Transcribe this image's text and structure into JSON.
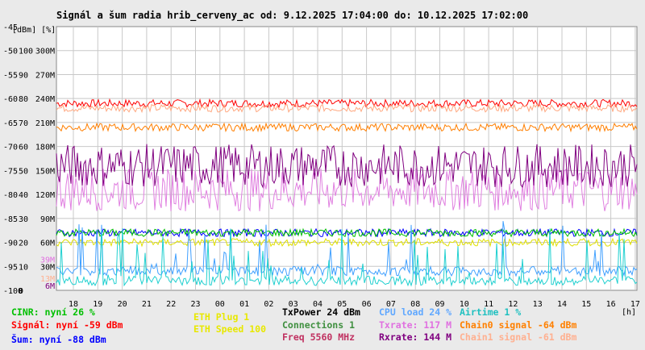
{
  "chart_data": {
    "type": "line",
    "title": "Signál a šum radia hrib_cerveny_ac od: 9.12.2025 17:04:00 do: 10.12.2025 17:02:00",
    "y_unit_label": "[dBm] [%]",
    "x_unit_label": "[h]",
    "xlabel": "",
    "ylabel": "",
    "x_ticks": [
      "18",
      "19",
      "20",
      "21",
      "22",
      "23",
      "00",
      "01",
      "02",
      "03",
      "04",
      "05",
      "06",
      "07",
      "08",
      "09",
      "10",
      "11",
      "12",
      "13",
      "14",
      "15",
      "16",
      "17"
    ],
    "y_ticks": [
      {
        "dbm": "-45",
        "pct": "",
        "rate": ""
      },
      {
        "dbm": "-50",
        "pct": "100",
        "rate": "300M"
      },
      {
        "dbm": "-55",
        "pct": "90",
        "rate": "270M"
      },
      {
        "dbm": "-60",
        "pct": "80",
        "rate": "240M"
      },
      {
        "dbm": "-65",
        "pct": "70",
        "rate": "210M"
      },
      {
        "dbm": "-70",
        "pct": "60",
        "rate": "180M"
      },
      {
        "dbm": "-75",
        "pct": "50",
        "rate": "150M"
      },
      {
        "dbm": "-80",
        "pct": "40",
        "rate": "120M"
      },
      {
        "dbm": "-85",
        "pct": "30",
        "rate": "90M"
      },
      {
        "dbm": "-90",
        "pct": "20",
        "rate": "60M"
      },
      {
        "dbm": "-95",
        "pct": "10",
        "rate": "30M"
      },
      {
        "dbm": "-100",
        "pct": "0",
        "rate": ""
      }
    ],
    "ylim": [
      -100,
      -45
    ],
    "y_left_units": "dBm",
    "inline_rate_labels": [
      "39M",
      "13M",
      "6M"
    ],
    "grid": true,
    "series": [
      {
        "name": "Signál",
        "color": "#ff0000",
        "approx_level": -61
      },
      {
        "name": "Chain1 signal",
        "color": "#ffa880",
        "approx_level": -62
      },
      {
        "name": "Chain0 signal",
        "color": "#ff7f00",
        "approx_level": -66
      },
      {
        "name": "Txrate",
        "color": "#e080e0",
        "approx_level": -79
      },
      {
        "name": "Rxrate",
        "color": "#800080",
        "approx_level": -74
      },
      {
        "name": "Šum",
        "color": "#0000ff",
        "approx_level": -88
      },
      {
        "name": "CINR",
        "color": "#00c000",
        "approx_level": -88
      },
      {
        "name": "ETH Speed",
        "color": "#e0e000",
        "approx_level": -90
      },
      {
        "name": "CPU load",
        "color": "#40a0ff",
        "approx_level": -97
      },
      {
        "name": "Airtime",
        "color": "#20d0d0",
        "approx_level": -99
      }
    ]
  },
  "legend": [
    {
      "text": "CINR: nyní 26 %",
      "color": "#00c000"
    },
    {
      "text": "Signál: nyní -59 dBm",
      "color": "#ff0000"
    },
    {
      "text": "Šum: nyní -88 dBm",
      "color": "#0000ff"
    },
    {
      "text": "ETH Plug 1",
      "color": "#e8e800"
    },
    {
      "text": "ETH Speed 100",
      "color": "#e8e800"
    },
    {
      "text": "TxPower 24 dBm",
      "color": "#000000"
    },
    {
      "text": "Connections 1",
      "color": "#409040"
    },
    {
      "text": "Freq 5560 MHz",
      "color": "#c03060"
    },
    {
      "text": "CPU load 24 %",
      "color": "#60a8ff"
    },
    {
      "text": "Txrate: 117 M",
      "color": "#e070e0"
    },
    {
      "text": "Rxrate: 144 M",
      "color": "#800080"
    },
    {
      "text": "Airtime 1 %",
      "color": "#20c0c0"
    },
    {
      "text": "Chain0 signal -64 dBm",
      "color": "#ff8000"
    },
    {
      "text": "Chain1 signal -61 dBm",
      "color": "#ffb090"
    }
  ]
}
